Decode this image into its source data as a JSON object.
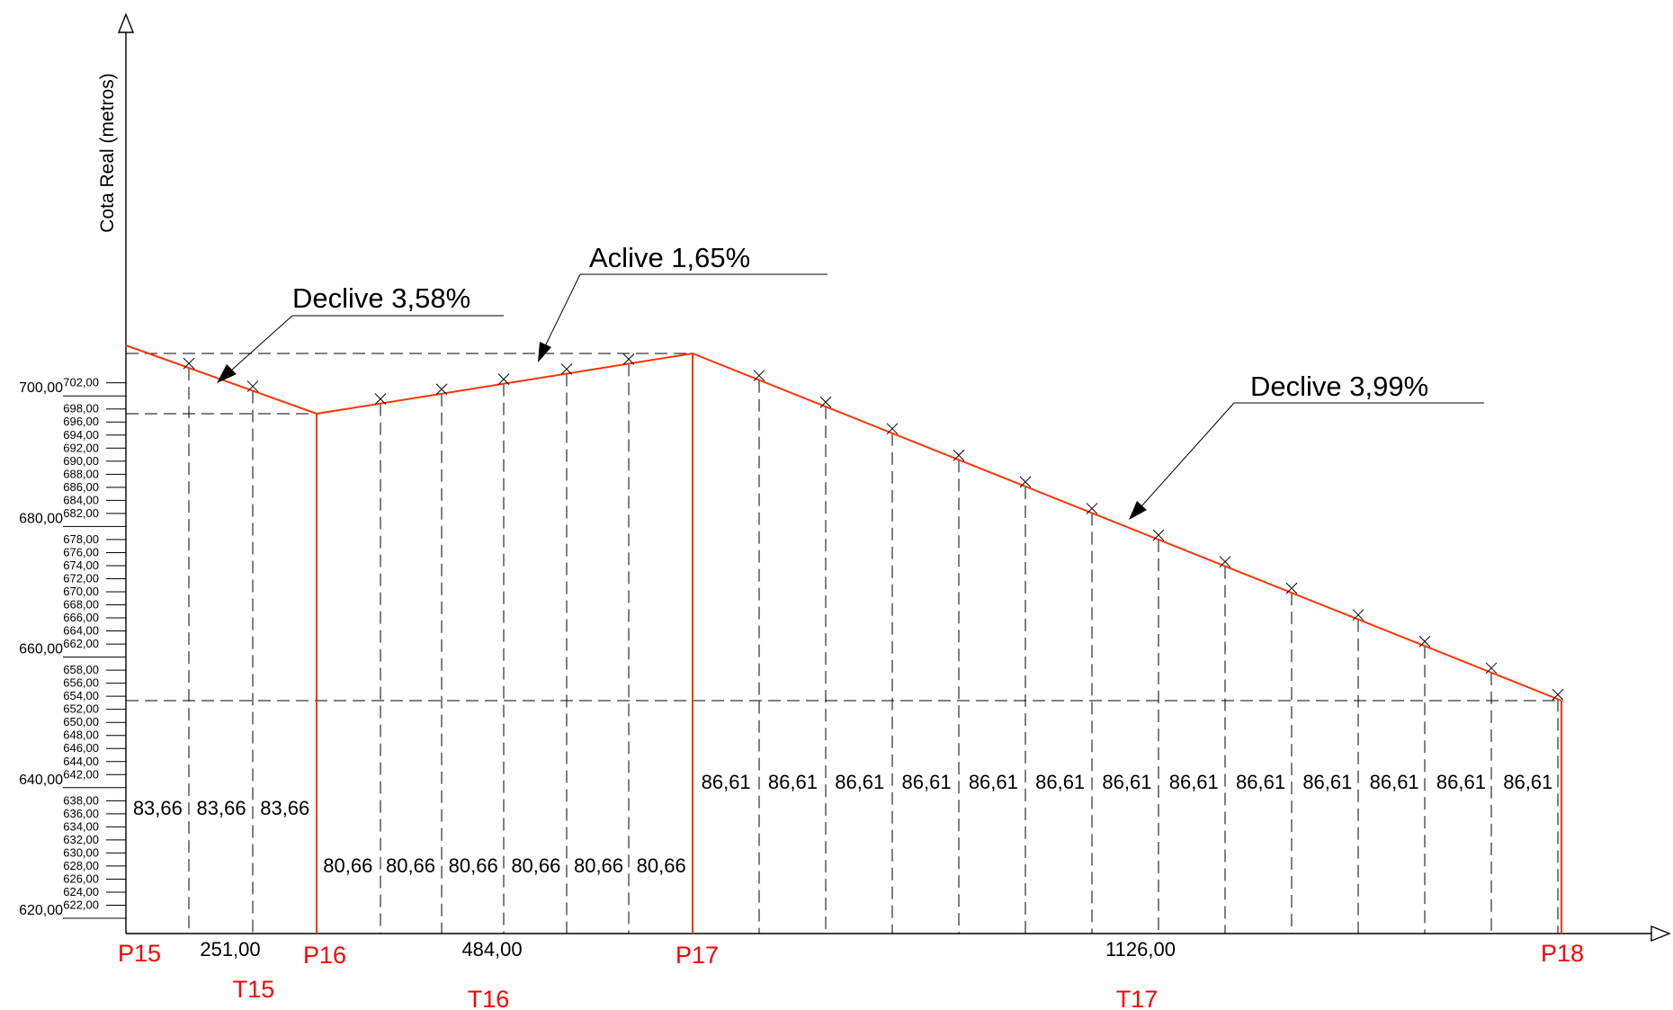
{
  "y_axis_label": "Cota Real (metros)",
  "y_ticks_minor": [
    "702,00",
    "698,00",
    "696,00",
    "694,00",
    "692,00",
    "690,00",
    "688,00",
    "686,00",
    "684,00",
    "682,00",
    "678,00",
    "676,00",
    "674,00",
    "672,00",
    "670,00",
    "668,00",
    "666,00",
    "664,00",
    "662,00",
    "658,00",
    "656,00",
    "654,00",
    "652,00",
    "650,00",
    "648,00",
    "646,00",
    "644,00",
    "642,00",
    "638,00",
    "636,00",
    "634,00",
    "632,00",
    "630,00",
    "628,00",
    "626,00",
    "624,00",
    "622,00"
  ],
  "y_ticks_major": [
    "700,00",
    "680,00",
    "660,00",
    "640,00",
    "620,00"
  ],
  "annotations": [
    "Declive 3,58%",
    "Aclive 1,65%",
    "Declive 3,99%"
  ],
  "points": [
    "P15",
    "P16",
    "P17",
    "P18"
  ],
  "segments": [
    "T15",
    "T16",
    "T17"
  ],
  "segment_lengths": [
    "251,00",
    "484,00",
    "1126,00"
  ],
  "t15_distances": [
    "83,66",
    "83,66",
    "83,66"
  ],
  "t16_distances": [
    "80,66",
    "80,66",
    "80,66",
    "80,66",
    "80,66",
    "80,66"
  ],
  "t17_distances": [
    "86,61",
    "86,61",
    "86,61",
    "86,61",
    "86,61",
    "86,61",
    "86,61",
    "86,61",
    "86,61",
    "86,61",
    "86,61",
    "86,61",
    "86,61"
  ],
  "colors": {
    "profile": "#ff3300",
    "point_label": "#ff0000",
    "ink": "#000000"
  }
}
